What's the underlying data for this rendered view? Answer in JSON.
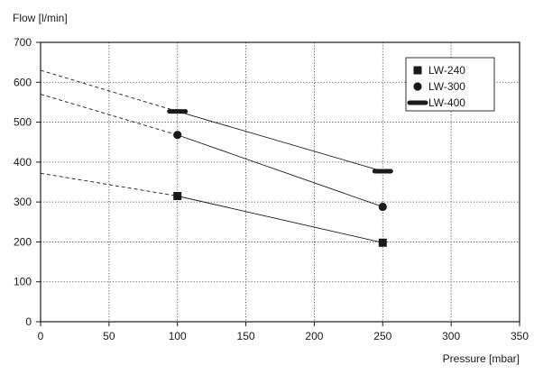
{
  "chart_data": {
    "type": "line",
    "ylabel": "Flow [l/min]",
    "xlabel": "Pressure [mbar]",
    "xlim": [
      0,
      350
    ],
    "ylim": [
      0,
      700
    ],
    "x_ticks": [
      0,
      50,
      100,
      150,
      200,
      250,
      300,
      350
    ],
    "y_ticks": [
      0,
      100,
      200,
      300,
      400,
      500,
      600,
      700
    ],
    "x_tick_labels": [
      "0",
      "50",
      "100",
      "150",
      "200",
      "250",
      "300",
      "350"
    ],
    "y_tick_labels": [
      "0",
      "100",
      "200",
      "300",
      "400",
      "500",
      "600",
      "700"
    ],
    "grid": "dotted",
    "legend_position": "top-right",
    "series": [
      {
        "name": "LW-240",
        "marker": "square",
        "points": [
          [
            100,
            315
          ],
          [
            250,
            198
          ]
        ],
        "extrapolation": [
          [
            0,
            372
          ],
          [
            100,
            315
          ]
        ]
      },
      {
        "name": "LW-300",
        "marker": "circle",
        "points": [
          [
            100,
            468
          ],
          [
            250,
            288
          ]
        ],
        "extrapolation": [
          [
            0,
            570
          ],
          [
            100,
            468
          ]
        ]
      },
      {
        "name": "LW-400",
        "marker": "bar",
        "points": [
          [
            100,
            527
          ],
          [
            250,
            377
          ]
        ],
        "extrapolation": [
          [
            0,
            630
          ],
          [
            100,
            527
          ]
        ]
      }
    ]
  }
}
